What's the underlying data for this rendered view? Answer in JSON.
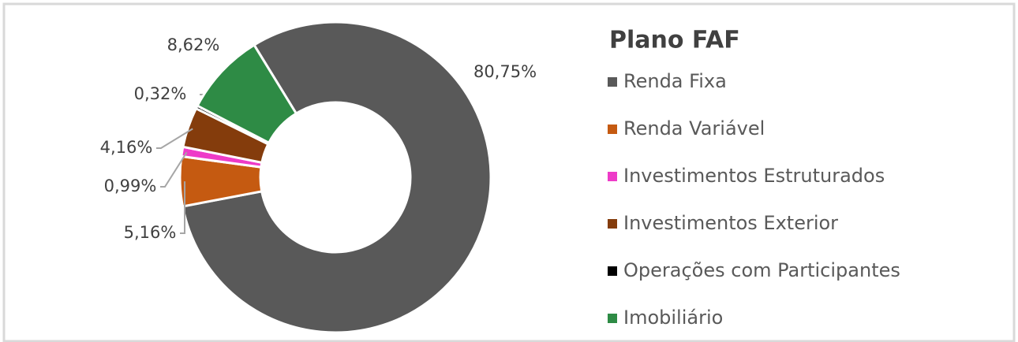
{
  "chart_data": {
    "type": "donut",
    "title": "Plano FAF",
    "series": [
      {
        "name": "Renda Fixa",
        "color": "#595959",
        "values": [
          80.75
        ],
        "value_labels": [
          "80,75%"
        ]
      },
      {
        "name": "Renda Variável",
        "color": "#c55a11",
        "values": [
          5.16
        ],
        "value_labels": [
          "5,16%"
        ]
      },
      {
        "name": "Investimentos Estruturados",
        "color": "#ee3bc8",
        "values": [
          0.99
        ],
        "value_labels": [
          "0,99%"
        ]
      },
      {
        "name": "Investimentos Exterior",
        "color": "#843c0c",
        "values": [
          4.16
        ],
        "value_labels": [
          "4,16%"
        ]
      },
      {
        "name": "Operações com Participantes",
        "color": "#000000",
        "values": [
          0.32
        ],
        "value_labels": [
          "0,32%"
        ]
      },
      {
        "name": "Imobiliário",
        "color": "#2e8b45",
        "values": [
          8.62
        ],
        "value_labels": [
          "8,62%"
        ]
      }
    ],
    "legend": "right"
  }
}
